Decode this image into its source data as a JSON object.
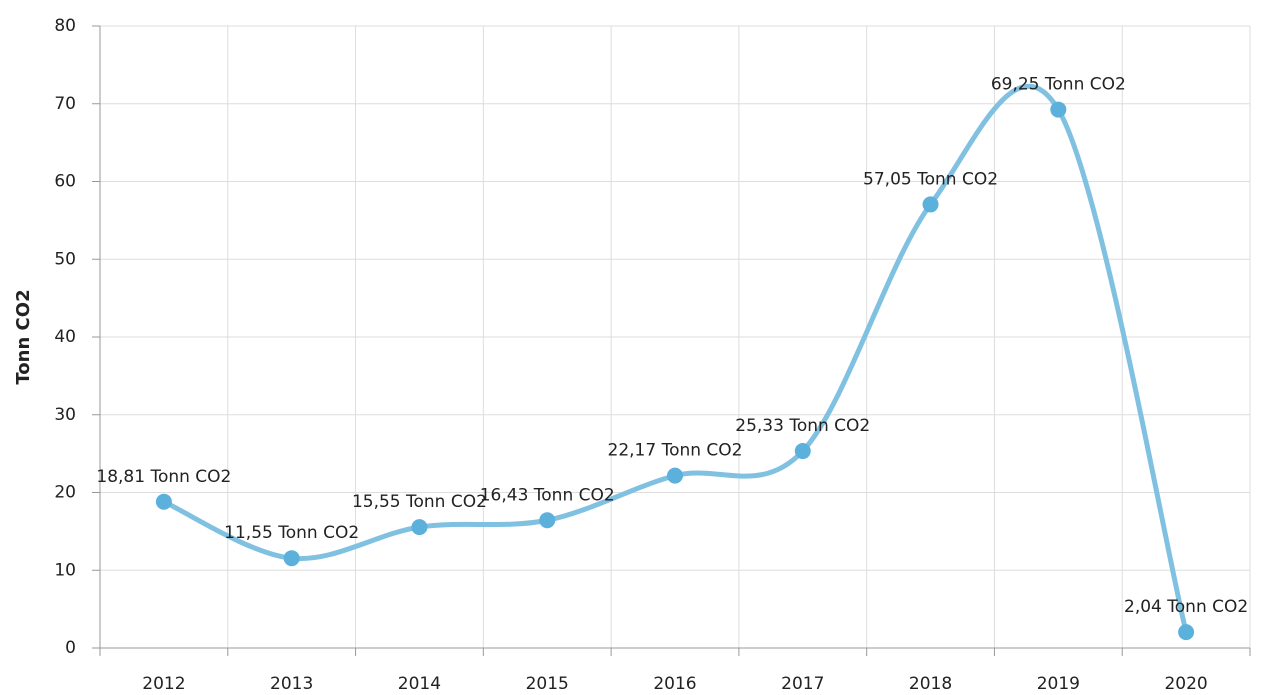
{
  "chart_data": {
    "type": "line",
    "y_label": "Tonn CO2",
    "categories": [
      "2012",
      "2013",
      "2014",
      "2015",
      "2016",
      "2017",
      "2018",
      "2019",
      "2020"
    ],
    "series": [
      {
        "name": "Tonn CO2",
        "color": "#80c1e2",
        "values": [
          18.81,
          11.55,
          15.55,
          16.43,
          22.17,
          25.33,
          57.05,
          69.25,
          2.04
        ],
        "value_labels": [
          "18,81 Tonn CO2",
          "11,55 Tonn CO2",
          "15,55 Tonn CO2",
          "16,43 Tonn CO2",
          "22,17 Tonn CO2",
          "25,33 Tonn CO2",
          "57,05 Tonn CO2",
          "69,25 Tonn CO2",
          "2,04 Tonn CO2"
        ]
      }
    ],
    "ylim": [
      0,
      80
    ],
    "yticks": [
      0,
      10,
      20,
      30,
      40,
      50,
      60,
      70,
      80
    ],
    "grid": true,
    "smooth": true
  }
}
